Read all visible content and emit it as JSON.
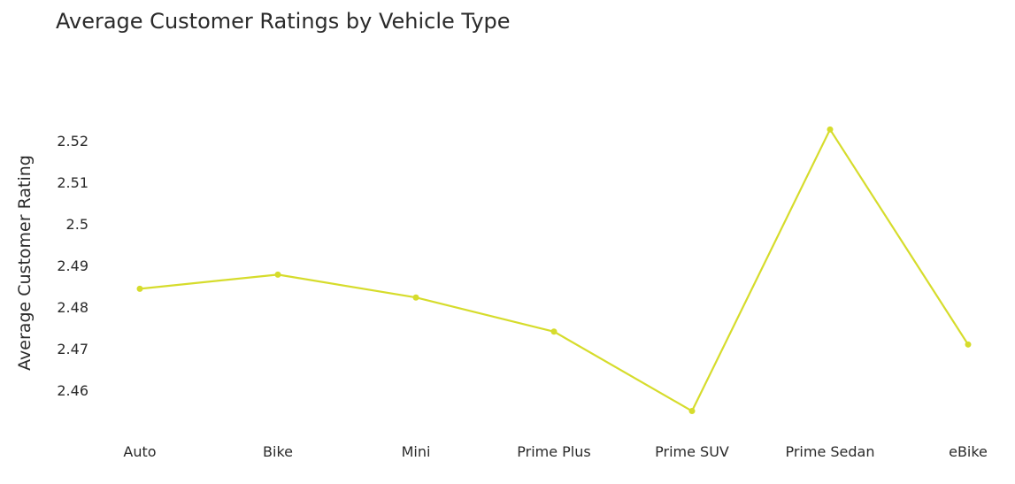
{
  "chart_data": {
    "type": "line",
    "title": "Average Customer Ratings by Vehicle Type",
    "xlabel": "",
    "ylabel": "Average Customer Rating",
    "categories": [
      "Auto",
      "Bike",
      "Mini",
      "Prime Plus",
      "Prime SUV",
      "Prime Sedan",
      "eBike"
    ],
    "series": [
      {
        "values": [
          2.4844,
          2.4878,
          2.4823,
          2.4741,
          2.455,
          2.5227,
          2.471
        ]
      }
    ],
    "y_ticks": [
      "2.46",
      "2.47",
      "2.48",
      "2.49",
      "2.5",
      "2.51",
      "2.52"
    ],
    "ylim": [
      2.4532,
      2.5283
    ],
    "grid": false,
    "line_color": "#d6dc2c"
  }
}
